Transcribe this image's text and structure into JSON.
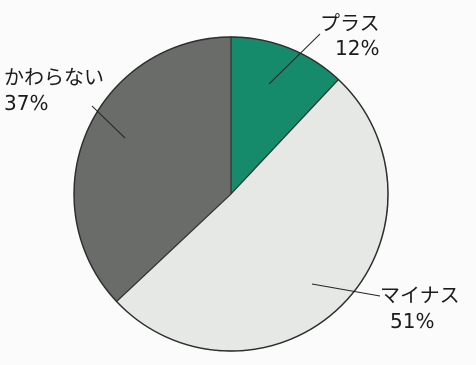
{
  "chart_data": {
    "type": "pie",
    "title": "",
    "slices": [
      {
        "label": "プラス",
        "value": 12,
        "value_label": "12%",
        "color": "#168b6c"
      },
      {
        "label": "マイナス",
        "value": 51,
        "value_label": "51%",
        "color": "#e6e8e6"
      },
      {
        "label": "かわらない",
        "value": 37,
        "value_label": "37%",
        "color": "#6a6c6a"
      }
    ],
    "start_angle": "12 o'clock",
    "direction": "clockwise",
    "legend": "none (labels outside slices with leader lines)"
  }
}
